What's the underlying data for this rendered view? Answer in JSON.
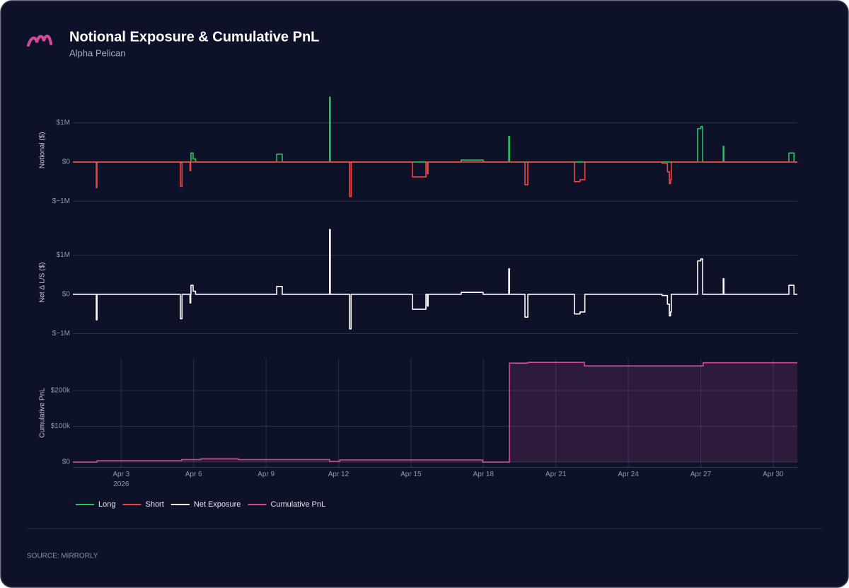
{
  "header": {
    "title": "Notional Exposure & Cumulative PnL",
    "subtitle": "Alpha Pelican"
  },
  "source": "SOURCE: MIRRORLY",
  "chart_data": [
    {
      "type": "line",
      "y_label": "Notional ($)",
      "xlim": [
        1,
        31
      ],
      "ylim": [
        -1200000,
        1800000
      ],
      "yticks": [
        {
          "value": 1000000,
          "label": "$1M"
        },
        {
          "value": 0,
          "label": "$0"
        },
        {
          "value": -1000000,
          "label": "$−1M"
        }
      ],
      "grid": true,
      "series": [
        {
          "name": "Long",
          "color": "#22c55e",
          "x": [
            1,
            5.89,
            5.89,
            5.98,
            5.98,
            6.08,
            6.08,
            9.44,
            9.44,
            9.67,
            9.67,
            11.63,
            11.63,
            11.66,
            11.66,
            17.08,
            17.08,
            17.99,
            17.99,
            19.05,
            19.05,
            19.08,
            19.08,
            26.87,
            26.87,
            27.0,
            27.0,
            27.08,
            27.08,
            27.93,
            27.93,
            27.96,
            27.96,
            30.65,
            30.65,
            30.86,
            30.86,
            31
          ],
          "values": [
            0,
            0,
            230000,
            230000,
            80000,
            80000,
            0,
            0,
            200000,
            200000,
            0,
            0,
            1650000,
            1650000,
            0,
            0,
            50000,
            50000,
            0,
            0,
            650000,
            650000,
            0,
            0,
            850000,
            850000,
            900000,
            900000,
            0,
            0,
            400000,
            400000,
            0,
            0,
            230000,
            230000,
            0,
            0
          ]
        },
        {
          "name": "Short",
          "color": "#ef4444",
          "x": [
            1,
            1.97,
            1.97,
            2.0,
            2.0,
            5.45,
            5.45,
            5.52,
            5.52,
            5.85,
            5.85,
            5.88,
            5.88,
            12.46,
            12.46,
            12.52,
            12.52,
            15.06,
            15.06,
            15.62,
            15.62,
            15.68,
            15.68,
            15.71,
            15.71,
            19.72,
            19.72,
            19.84,
            19.84,
            21.77,
            21.77,
            22.0,
            22.0,
            22.2,
            22.2,
            25.4,
            25.4,
            25.62,
            25.62,
            25.7,
            25.7,
            25.75,
            25.75,
            25.78,
            25.78,
            31
          ],
          "values": [
            0,
            0,
            -650000,
            -650000,
            0,
            0,
            -620000,
            -620000,
            0,
            0,
            -220000,
            -220000,
            0,
            0,
            -880000,
            -880000,
            0,
            0,
            -380000,
            -380000,
            0,
            0,
            -300000,
            -300000,
            0,
            0,
            -580000,
            -580000,
            0,
            0,
            -500000,
            -500000,
            -450000,
            -450000,
            0,
            0,
            -30000,
            -30000,
            -250000,
            -250000,
            -550000,
            -550000,
            -450000,
            -450000,
            0,
            0
          ]
        }
      ]
    },
    {
      "type": "line",
      "y_label": "Net Δ L/S ($)",
      "xlim": [
        1,
        31
      ],
      "ylim": [
        -1200000,
        1800000
      ],
      "yticks": [
        {
          "value": 1000000,
          "label": "$1M"
        },
        {
          "value": 0,
          "label": "$0"
        },
        {
          "value": -1000000,
          "label": "$−1M"
        }
      ],
      "grid": true,
      "series": [
        {
          "name": "Net Exposure",
          "color": "#ffffff",
          "x": [
            1,
            1.97,
            1.97,
            2.0,
            2.0,
            5.45,
            5.45,
            5.52,
            5.52,
            5.85,
            5.85,
            5.88,
            5.88,
            5.89,
            5.89,
            5.98,
            5.98,
            6.08,
            6.08,
            9.44,
            9.44,
            9.67,
            9.67,
            11.63,
            11.63,
            11.66,
            11.66,
            12.46,
            12.46,
            12.52,
            12.52,
            15.06,
            15.06,
            15.62,
            15.62,
            15.68,
            15.68,
            15.71,
            15.71,
            17.08,
            17.08,
            17.99,
            17.99,
            19.05,
            19.05,
            19.08,
            19.08,
            19.72,
            19.72,
            19.84,
            19.84,
            21.77,
            21.77,
            22.0,
            22.0,
            22.2,
            22.2,
            25.4,
            25.4,
            25.62,
            25.62,
            25.7,
            25.7,
            25.75,
            25.75,
            25.78,
            25.78,
            26.87,
            26.87,
            27.0,
            27.0,
            27.08,
            27.08,
            27.93,
            27.93,
            27.96,
            27.96,
            30.65,
            30.65,
            30.86,
            30.86,
            31
          ],
          "values": [
            0,
            0,
            -650000,
            -650000,
            0,
            0,
            -620000,
            -620000,
            0,
            0,
            -220000,
            -220000,
            0,
            0,
            230000,
            230000,
            80000,
            80000,
            0,
            0,
            200000,
            200000,
            0,
            0,
            1650000,
            1650000,
            0,
            0,
            -880000,
            -880000,
            0,
            0,
            -380000,
            -380000,
            0,
            0,
            -300000,
            -300000,
            0,
            0,
            50000,
            50000,
            0,
            0,
            650000,
            650000,
            0,
            0,
            -580000,
            -580000,
            0,
            0,
            -500000,
            -500000,
            -450000,
            -450000,
            0,
            0,
            -30000,
            -30000,
            -250000,
            -250000,
            -550000,
            -550000,
            -450000,
            -450000,
            0,
            0,
            850000,
            850000,
            900000,
            900000,
            0,
            0,
            400000,
            400000,
            0,
            0,
            230000,
            230000,
            0,
            0
          ]
        }
      ]
    },
    {
      "type": "area",
      "y_label": "Cumulative PnL",
      "xlim": [
        1,
        31
      ],
      "ylim": [
        -15000,
        290000
      ],
      "yticks": [
        {
          "value": 200000,
          "label": "$200k"
        },
        {
          "value": 100000,
          "label": "$100k"
        },
        {
          "value": 0,
          "label": "$0"
        }
      ],
      "grid": true,
      "xticks": [
        {
          "value": 3,
          "label": "Apr 3"
        },
        {
          "value": 6,
          "label": "Apr 6"
        },
        {
          "value": 9,
          "label": "Apr 9"
        },
        {
          "value": 12,
          "label": "Apr 12"
        },
        {
          "value": 15,
          "label": "Apr 15"
        },
        {
          "value": 18,
          "label": "Apr 18"
        },
        {
          "value": 21,
          "label": "Apr 21"
        },
        {
          "value": 24,
          "label": "Apr 24"
        },
        {
          "value": 27,
          "label": "Apr 27"
        },
        {
          "value": 30,
          "label": "Apr 30"
        }
      ],
      "x_year_label": "2026",
      "x_grid": true,
      "series": [
        {
          "name": "Cumulative PnL",
          "color": "#d6489a",
          "x": [
            1,
            2.0,
            2.0,
            5.5,
            5.5,
            6.3,
            6.3,
            7.85,
            7.85,
            11.63,
            11.63,
            12.05,
            12.05,
            17.97,
            17.97,
            19.08,
            19.08,
            19.84,
            19.84,
            22.18,
            22.18,
            27.1,
            27.1,
            31
          ],
          "values": [
            0,
            0,
            4000,
            4000,
            7000,
            7000,
            9000,
            9000,
            7000,
            7000,
            2000,
            2000,
            6000,
            6000,
            0,
            0,
            277000,
            277000,
            279000,
            279000,
            269000,
            269000,
            278000,
            278000
          ]
        }
      ]
    }
  ]
}
